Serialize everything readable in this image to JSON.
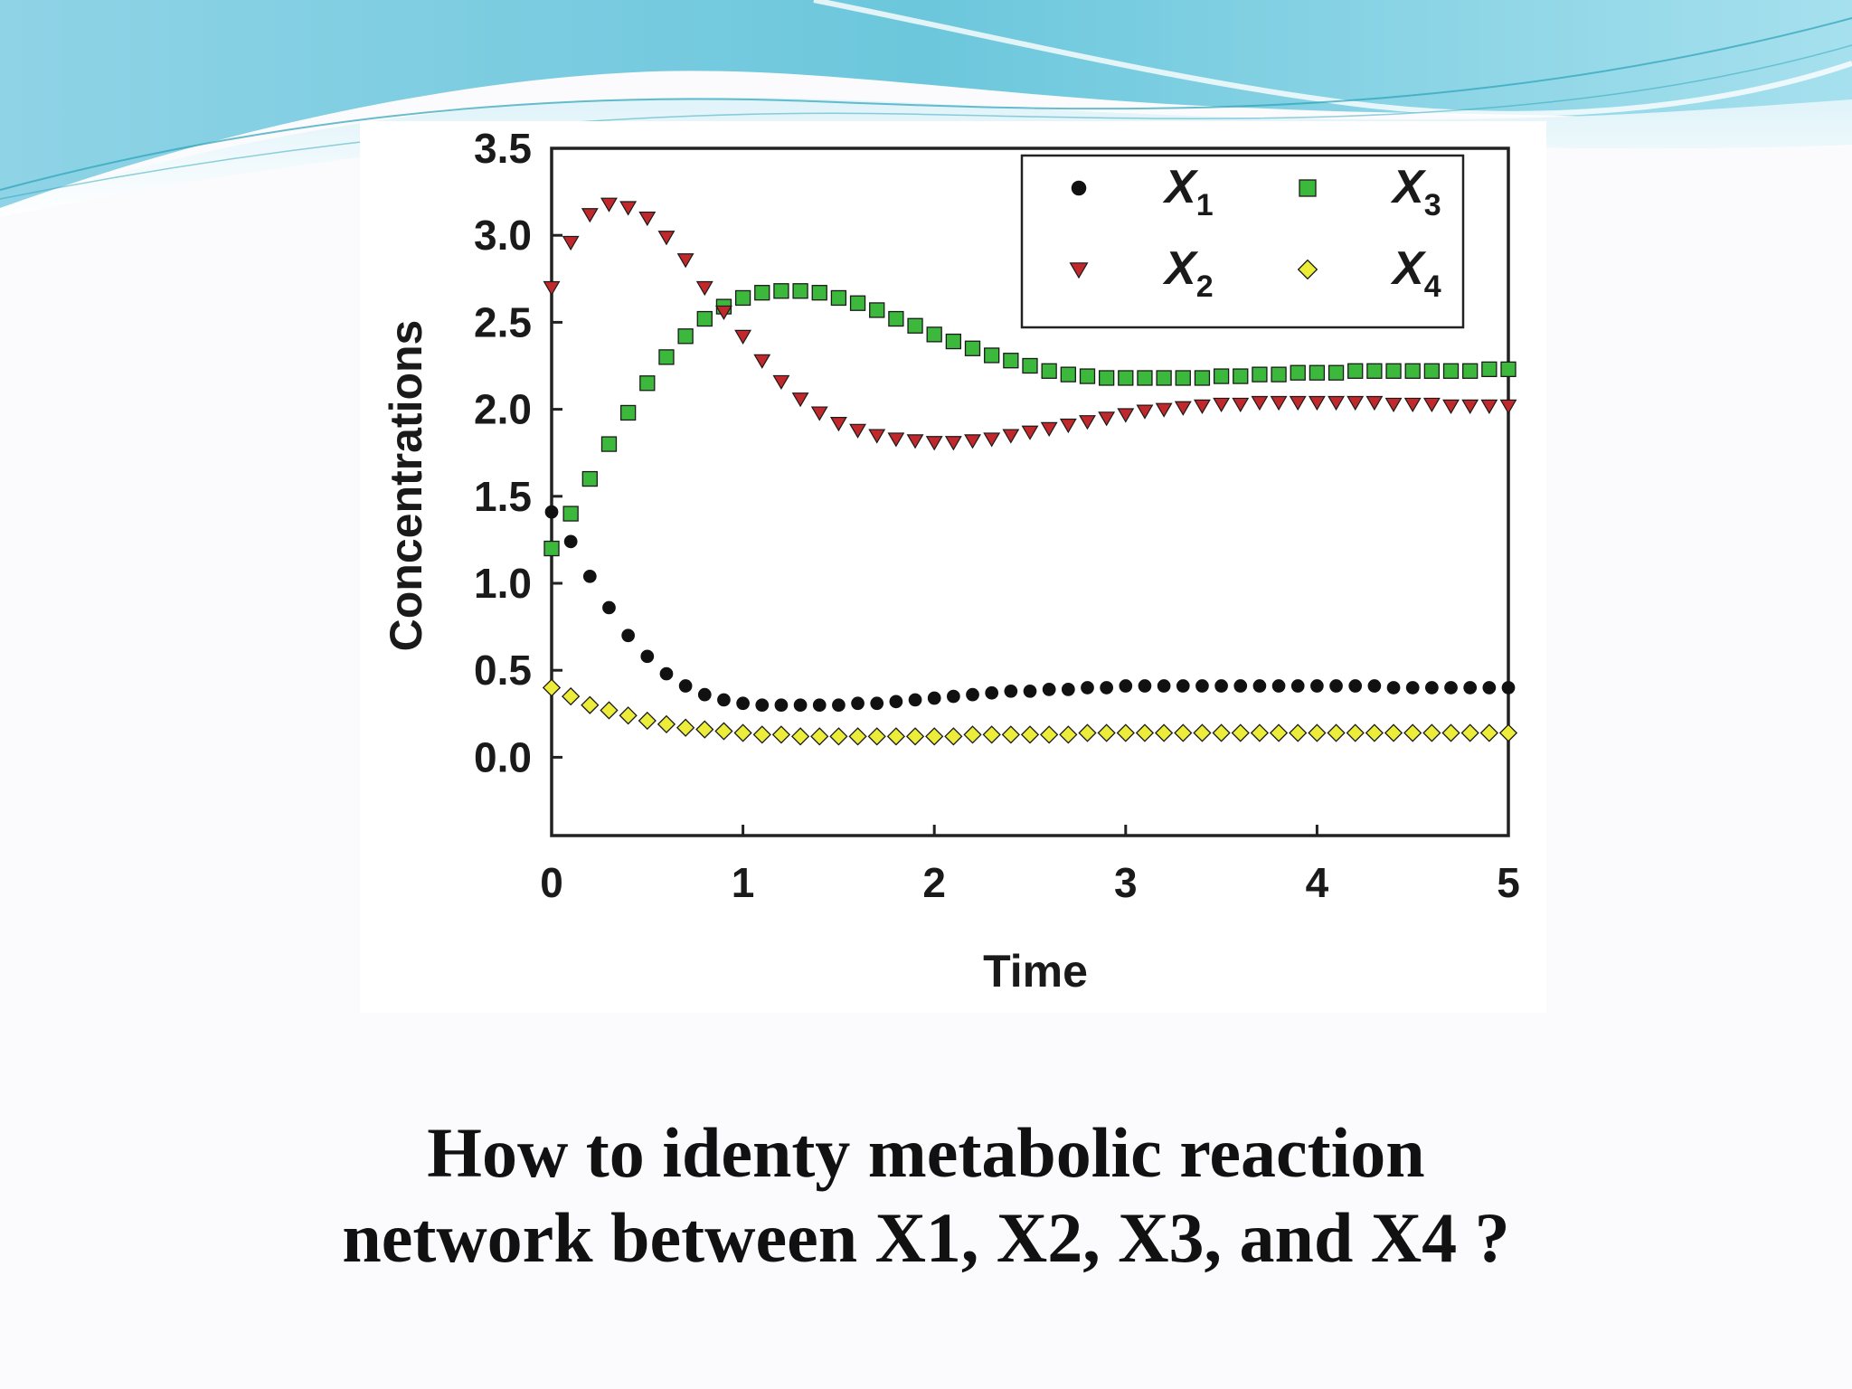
{
  "slide": {
    "caption_line1": "How to identy metabolic reaction",
    "caption_line2": "network between X1, X2, X3, and X4 ?",
    "header_colors": [
      "#6cc7dc",
      "#a6e0ee",
      "#2aa3b8"
    ]
  },
  "chart_data": {
    "type": "scatter",
    "title": "",
    "xlabel": "Time",
    "ylabel": "Concentrations",
    "xlim": [
      0,
      5
    ],
    "ylim": [
      -0.45,
      3.5
    ],
    "xticks": [
      "0",
      "1",
      "2",
      "3",
      "4",
      "5"
    ],
    "yticks": [
      "0.0",
      "0.5",
      "1.0",
      "1.5",
      "2.0",
      "2.5",
      "3.0",
      "3.5"
    ],
    "grid": false,
    "legend_position": "top-right",
    "x": [
      0,
      0.1,
      0.2,
      0.3,
      0.4,
      0.5,
      0.6,
      0.7,
      0.8,
      0.9,
      1.0,
      1.1,
      1.2,
      1.3,
      1.4,
      1.5,
      1.6,
      1.7,
      1.8,
      1.9,
      2.0,
      2.1,
      2.2,
      2.3,
      2.4,
      2.5,
      2.6,
      2.7,
      2.8,
      2.9,
      3.0,
      3.1,
      3.2,
      3.3,
      3.4,
      3.5,
      3.6,
      3.7,
      3.8,
      3.9,
      4.0,
      4.1,
      4.2,
      4.3,
      4.4,
      4.5,
      4.6,
      4.7,
      4.8,
      4.9,
      5.0
    ],
    "series": [
      {
        "name": "X1",
        "sub": "1",
        "marker": "circle",
        "color": "#111111",
        "values": [
          1.41,
          1.24,
          1.04,
          0.86,
          0.7,
          0.58,
          0.48,
          0.41,
          0.36,
          0.33,
          0.31,
          0.3,
          0.3,
          0.3,
          0.3,
          0.3,
          0.31,
          0.31,
          0.32,
          0.33,
          0.34,
          0.35,
          0.36,
          0.37,
          0.38,
          0.38,
          0.39,
          0.39,
          0.4,
          0.4,
          0.41,
          0.41,
          0.41,
          0.41,
          0.41,
          0.41,
          0.41,
          0.41,
          0.41,
          0.41,
          0.41,
          0.41,
          0.41,
          0.41,
          0.4,
          0.4,
          0.4,
          0.4,
          0.4,
          0.4,
          0.4
        ]
      },
      {
        "name": "X2",
        "sub": "2",
        "marker": "triangle-down",
        "color": "#c0282b",
        "values": [
          2.7,
          2.96,
          3.12,
          3.18,
          3.16,
          3.1,
          2.99,
          2.86,
          2.7,
          2.56,
          2.42,
          2.28,
          2.16,
          2.06,
          1.98,
          1.92,
          1.88,
          1.85,
          1.83,
          1.82,
          1.81,
          1.81,
          1.82,
          1.83,
          1.85,
          1.87,
          1.89,
          1.91,
          1.93,
          1.95,
          1.97,
          1.99,
          2.0,
          2.01,
          2.02,
          2.03,
          2.03,
          2.04,
          2.04,
          2.04,
          2.04,
          2.04,
          2.04,
          2.04,
          2.03,
          2.03,
          2.03,
          2.02,
          2.02,
          2.02,
          2.02
        ]
      },
      {
        "name": "X3",
        "sub": "3",
        "marker": "square",
        "color": "#3cb83c",
        "values": [
          1.2,
          1.4,
          1.6,
          1.8,
          1.98,
          2.15,
          2.3,
          2.42,
          2.52,
          2.59,
          2.64,
          2.67,
          2.68,
          2.68,
          2.67,
          2.64,
          2.61,
          2.57,
          2.52,
          2.48,
          2.43,
          2.39,
          2.35,
          2.31,
          2.28,
          2.25,
          2.22,
          2.2,
          2.19,
          2.18,
          2.18,
          2.18,
          2.18,
          2.18,
          2.18,
          2.19,
          2.19,
          2.2,
          2.2,
          2.21,
          2.21,
          2.21,
          2.22,
          2.22,
          2.22,
          2.22,
          2.22,
          2.22,
          2.22,
          2.23,
          2.23
        ]
      },
      {
        "name": "X4",
        "sub": "4",
        "marker": "diamond",
        "color": "#ecec3a",
        "values": [
          0.4,
          0.35,
          0.3,
          0.27,
          0.24,
          0.21,
          0.19,
          0.17,
          0.16,
          0.15,
          0.14,
          0.13,
          0.13,
          0.12,
          0.12,
          0.12,
          0.12,
          0.12,
          0.12,
          0.12,
          0.12,
          0.12,
          0.13,
          0.13,
          0.13,
          0.13,
          0.13,
          0.13,
          0.14,
          0.14,
          0.14,
          0.14,
          0.14,
          0.14,
          0.14,
          0.14,
          0.14,
          0.14,
          0.14,
          0.14,
          0.14,
          0.14,
          0.14,
          0.14,
          0.14,
          0.14,
          0.14,
          0.14,
          0.14,
          0.14,
          0.14
        ]
      }
    ]
  }
}
